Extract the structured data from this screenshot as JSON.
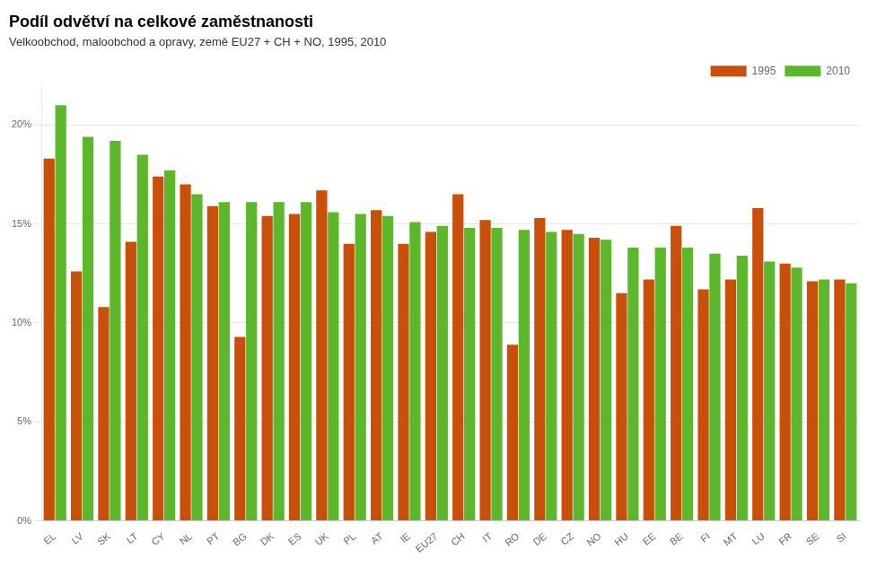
{
  "chart_data": {
    "type": "bar",
    "title": "Podíl odvětví na celkové zaměstnanosti",
    "subtitle": "Velkoobchod, maloobchod a opravy, země EU27 + CH + NO, 1995, 2010",
    "categories": [
      "EL",
      "LV",
      "SK",
      "LT",
      "CY",
      "NL",
      "PT",
      "BG",
      "DK",
      "ES",
      "UK",
      "PL",
      "AT",
      "IE",
      "EU27",
      "CH",
      "IT",
      "RO",
      "DE",
      "CZ",
      "NO",
      "HU",
      "EE",
      "BE",
      "FI",
      "MT",
      "LU",
      "FR",
      "SE",
      "SI"
    ],
    "series": [
      {
        "name": "1995",
        "color": "#C8500A",
        "values": [
          18.3,
          12.6,
          10.8,
          14.1,
          17.4,
          17.0,
          15.9,
          9.3,
          15.4,
          15.5,
          16.7,
          14.0,
          15.7,
          14.0,
          14.6,
          16.5,
          15.2,
          8.9,
          15.3,
          14.7,
          14.3,
          11.5,
          12.2,
          14.9,
          11.7,
          12.2,
          15.8,
          13.0,
          12.1,
          12.2
        ]
      },
      {
        "name": "2010",
        "color": "#5CB82A",
        "values": [
          21.0,
          19.4,
          19.2,
          18.5,
          17.7,
          16.5,
          16.1,
          16.1,
          16.1,
          16.1,
          15.6,
          15.5,
          15.4,
          15.1,
          14.9,
          14.8,
          14.8,
          14.7,
          14.6,
          14.5,
          14.2,
          13.8,
          13.8,
          13.8,
          13.5,
          13.4,
          13.1,
          12.8,
          12.2,
          12.0
        ]
      }
    ],
    "ylim": [
      0,
      22
    ],
    "yticks": [
      {
        "value": 0,
        "label": "0%"
      },
      {
        "value": 5,
        "label": "5%"
      },
      {
        "value": 10,
        "label": "10%"
      },
      {
        "value": 15,
        "label": "15%"
      },
      {
        "value": 20,
        "label": "20%"
      }
    ],
    "grid": true,
    "legend": "upper right"
  }
}
